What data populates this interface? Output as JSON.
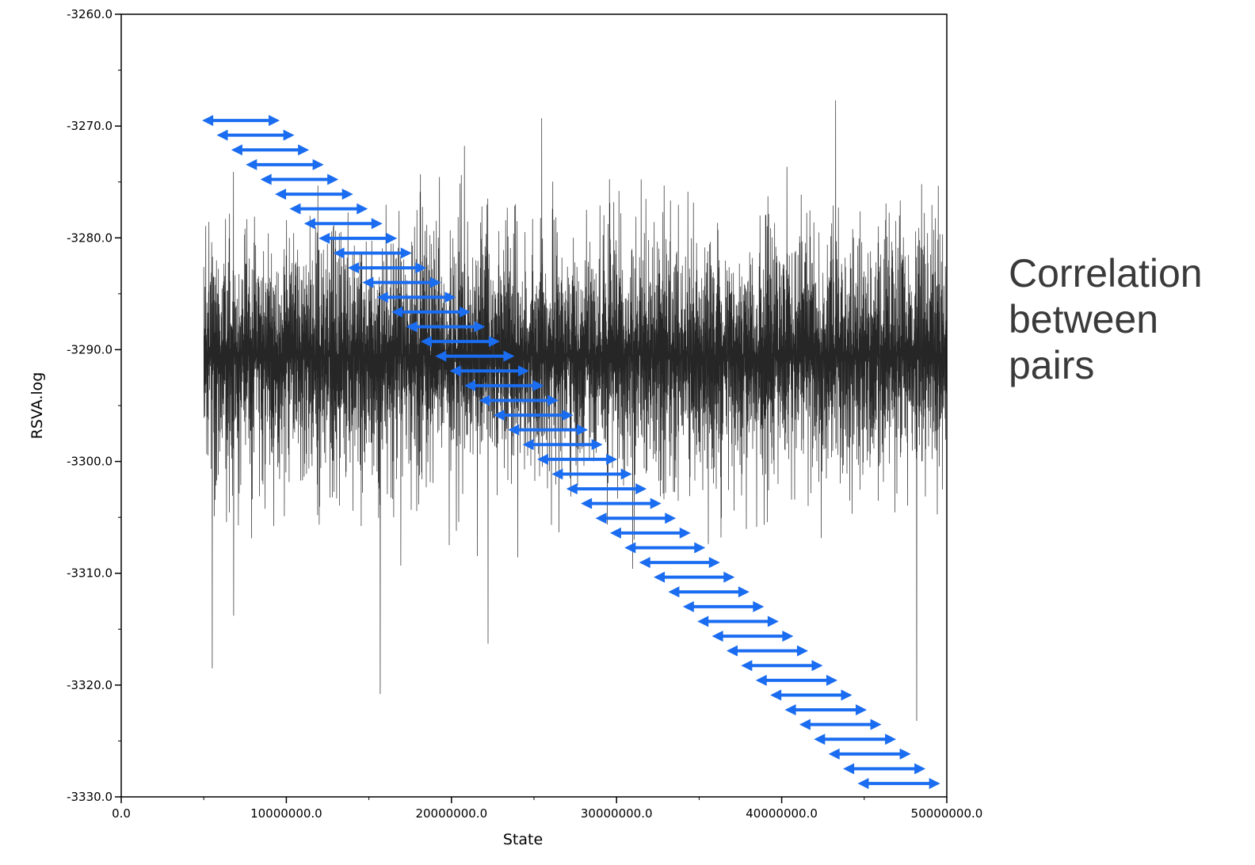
{
  "chart_data": {
    "type": "line",
    "title": "",
    "xlabel": "State",
    "ylabel": "RSVA.log",
    "xlim": [
      0,
      50000000
    ],
    "ylim": [
      -3330,
      -3260
    ],
    "x_ticks": [
      0,
      10000000,
      20000000,
      30000000,
      40000000,
      50000000
    ],
    "x_tick_labels": [
      "0.0",
      "10000000.0",
      "20000000.0",
      "30000000.0",
      "40000000.0",
      "50000000.0"
    ],
    "y_ticks": [
      -3260,
      -3270,
      -3280,
      -3290,
      -3300,
      -3310,
      -3320,
      -3330
    ],
    "y_tick_labels": [
      "-3260.0",
      "-3270.0",
      "-3280.0",
      "-3290.0",
      "-3300.0",
      "-3310.0",
      "-3320.0",
      "-3330.0"
    ],
    "grid": false,
    "legend": "none",
    "series_color": "#000000",
    "trace": {
      "x_start": 5000000,
      "x_end": 50000000,
      "mean": -3290.5,
      "typical_low": -3300,
      "typical_high": -3281,
      "spike_extremes": [
        {
          "x": 5500000,
          "y": -3318.5
        },
        {
          "x": 6800000,
          "y": -3313.8
        },
        {
          "x": 15700000,
          "y": -3320.8
        },
        {
          "x": 22200000,
          "y": -3316.3
        },
        {
          "x": 25500000,
          "y": -3269.3
        },
        {
          "x": 43300000,
          "y": -3267.7
        },
        {
          "x": 48200000,
          "y": -3323.2
        }
      ]
    },
    "annotation_arrows": {
      "color": "#1a6cf0",
      "count": 46,
      "first": {
        "x_from": 4900000,
        "x_to": 9600000,
        "y": -3269.5
      },
      "last": {
        "x_from": 44600000,
        "x_to": 49600000,
        "y": -3328.8
      }
    }
  },
  "annotation": {
    "lines": [
      "Correlation",
      "between",
      "pairs"
    ]
  }
}
